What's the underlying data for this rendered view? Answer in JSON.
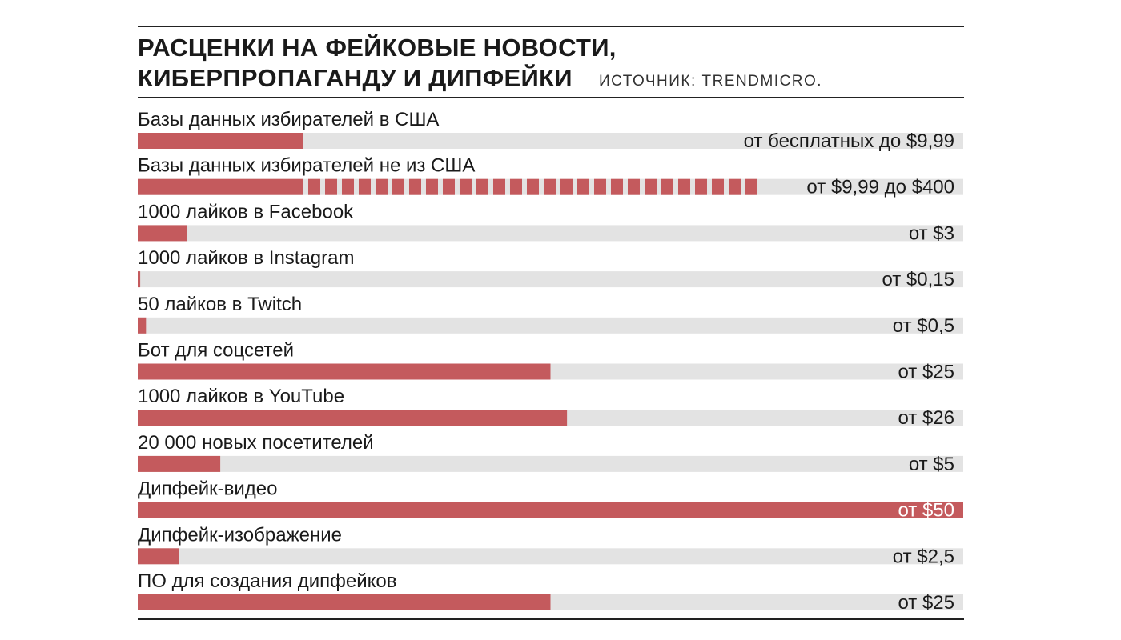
{
  "header": {
    "title_line1": "РАСЦЕНКИ НА ФЕЙКОВЫЕ НОВОСТИ,",
    "title_line2": "КИБЕРПРОПАГАНДУ И ДИПФЕЙКИ",
    "source": "ИСТОЧНИК: TRENDMICRO."
  },
  "colors": {
    "bar": "#c45a5d",
    "track": "#e3e3e3",
    "rule": "#222222",
    "text": "#1a1a1a"
  },
  "chart_data": {
    "type": "bar",
    "orientation": "horizontal",
    "unit": "$",
    "xlim": [
      0,
      50
    ],
    "grid": false,
    "legend": "none",
    "categories": [
      "Базы данных избирателей в США",
      "Базы данных избирателей не из США",
      "1000 лайков в Facebook",
      "1000 лайков в Instagram",
      "50 лайков в Twitch",
      "Бот для соцсетей",
      "1000 лайков в YouTube",
      "20 000 новых посетителей",
      "Дипфейк-видео",
      "Дипфейк-изображение",
      "ПО для создания дипфейков"
    ],
    "value_labels": [
      "от бесплатных до $9,99",
      "от $9,99 до $400",
      "от $3",
      "от $0,15",
      "от $0,5",
      "от $25",
      "от $26",
      "от $5",
      "от $50",
      "от $2,5",
      "от $25"
    ],
    "values": [
      9.99,
      9.99,
      3,
      0.15,
      0.5,
      25,
      26,
      5,
      50,
      2.5,
      25
    ],
    "range_max": [
      null,
      400,
      null,
      null,
      null,
      null,
      null,
      null,
      null,
      null,
      null
    ]
  }
}
